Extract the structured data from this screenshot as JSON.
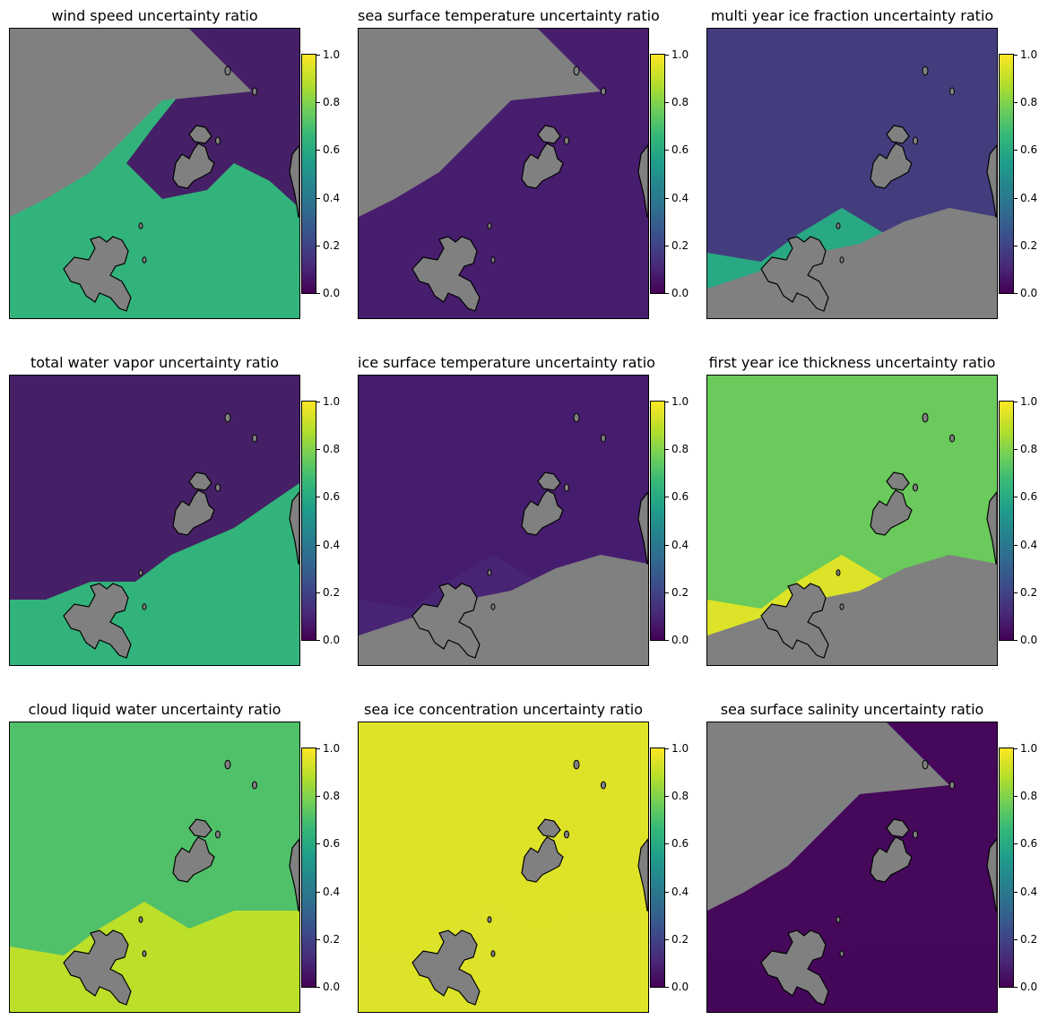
{
  "colorbar": {
    "ticks": [
      "0.0",
      "0.2",
      "0.4",
      "0.6",
      "0.8",
      "1.0"
    ],
    "colormap": [
      "#440154",
      "#482878",
      "#3e4989",
      "#31688e",
      "#26828e",
      "#1f9e89",
      "#35b779",
      "#6ece58",
      "#b5de2b",
      "#fde725"
    ],
    "range": [
      0.0,
      1.0
    ]
  },
  "land_color": "#808080",
  "masked_color": "#808080",
  "panels": [
    {
      "title": "wind speed uncertainty ratio",
      "ocean_value": 0.65,
      "ice_value": 0.05,
      "ice_extent": "north-east",
      "mask": "north-west"
    },
    {
      "title": "sea surface temperature uncertainty ratio",
      "ocean_value": 0.08,
      "ice_value": 0.05,
      "ice_extent": "none",
      "mask": "north-west"
    },
    {
      "title": "multi year ice fraction uncertainty ratio",
      "ocean_value": 0.6,
      "ice_value": 0.15,
      "ice_extent": "north",
      "mask": "south"
    },
    {
      "title": "total water vapor uncertainty ratio",
      "ocean_value": 0.65,
      "ice_value": 0.05,
      "ice_extent": "north-west",
      "mask": "none"
    },
    {
      "title": "ice surface temperature uncertainty ratio",
      "ocean_value": 0.1,
      "ice_value": 0.08,
      "ice_extent": "north",
      "mask": "south"
    },
    {
      "title": "first year ice thickness uncertainty ratio",
      "ocean_value": 0.95,
      "ice_value": 0.75,
      "ice_extent": "north",
      "mask": "south"
    },
    {
      "title": "cloud liquid water uncertainty ratio",
      "ocean_value": 0.9,
      "ice_value": 0.7,
      "ice_extent": "north",
      "mask": "none"
    },
    {
      "title": "sea ice concentration uncertainty ratio",
      "ocean_value": 0.95,
      "ice_value": 0.95,
      "ice_extent": "north",
      "mask": "none"
    },
    {
      "title": "sea surface salinity uncertainty ratio",
      "ocean_value": 0.02,
      "ice_value": 0.02,
      "ice_extent": "south",
      "mask": "north-west"
    }
  ]
}
